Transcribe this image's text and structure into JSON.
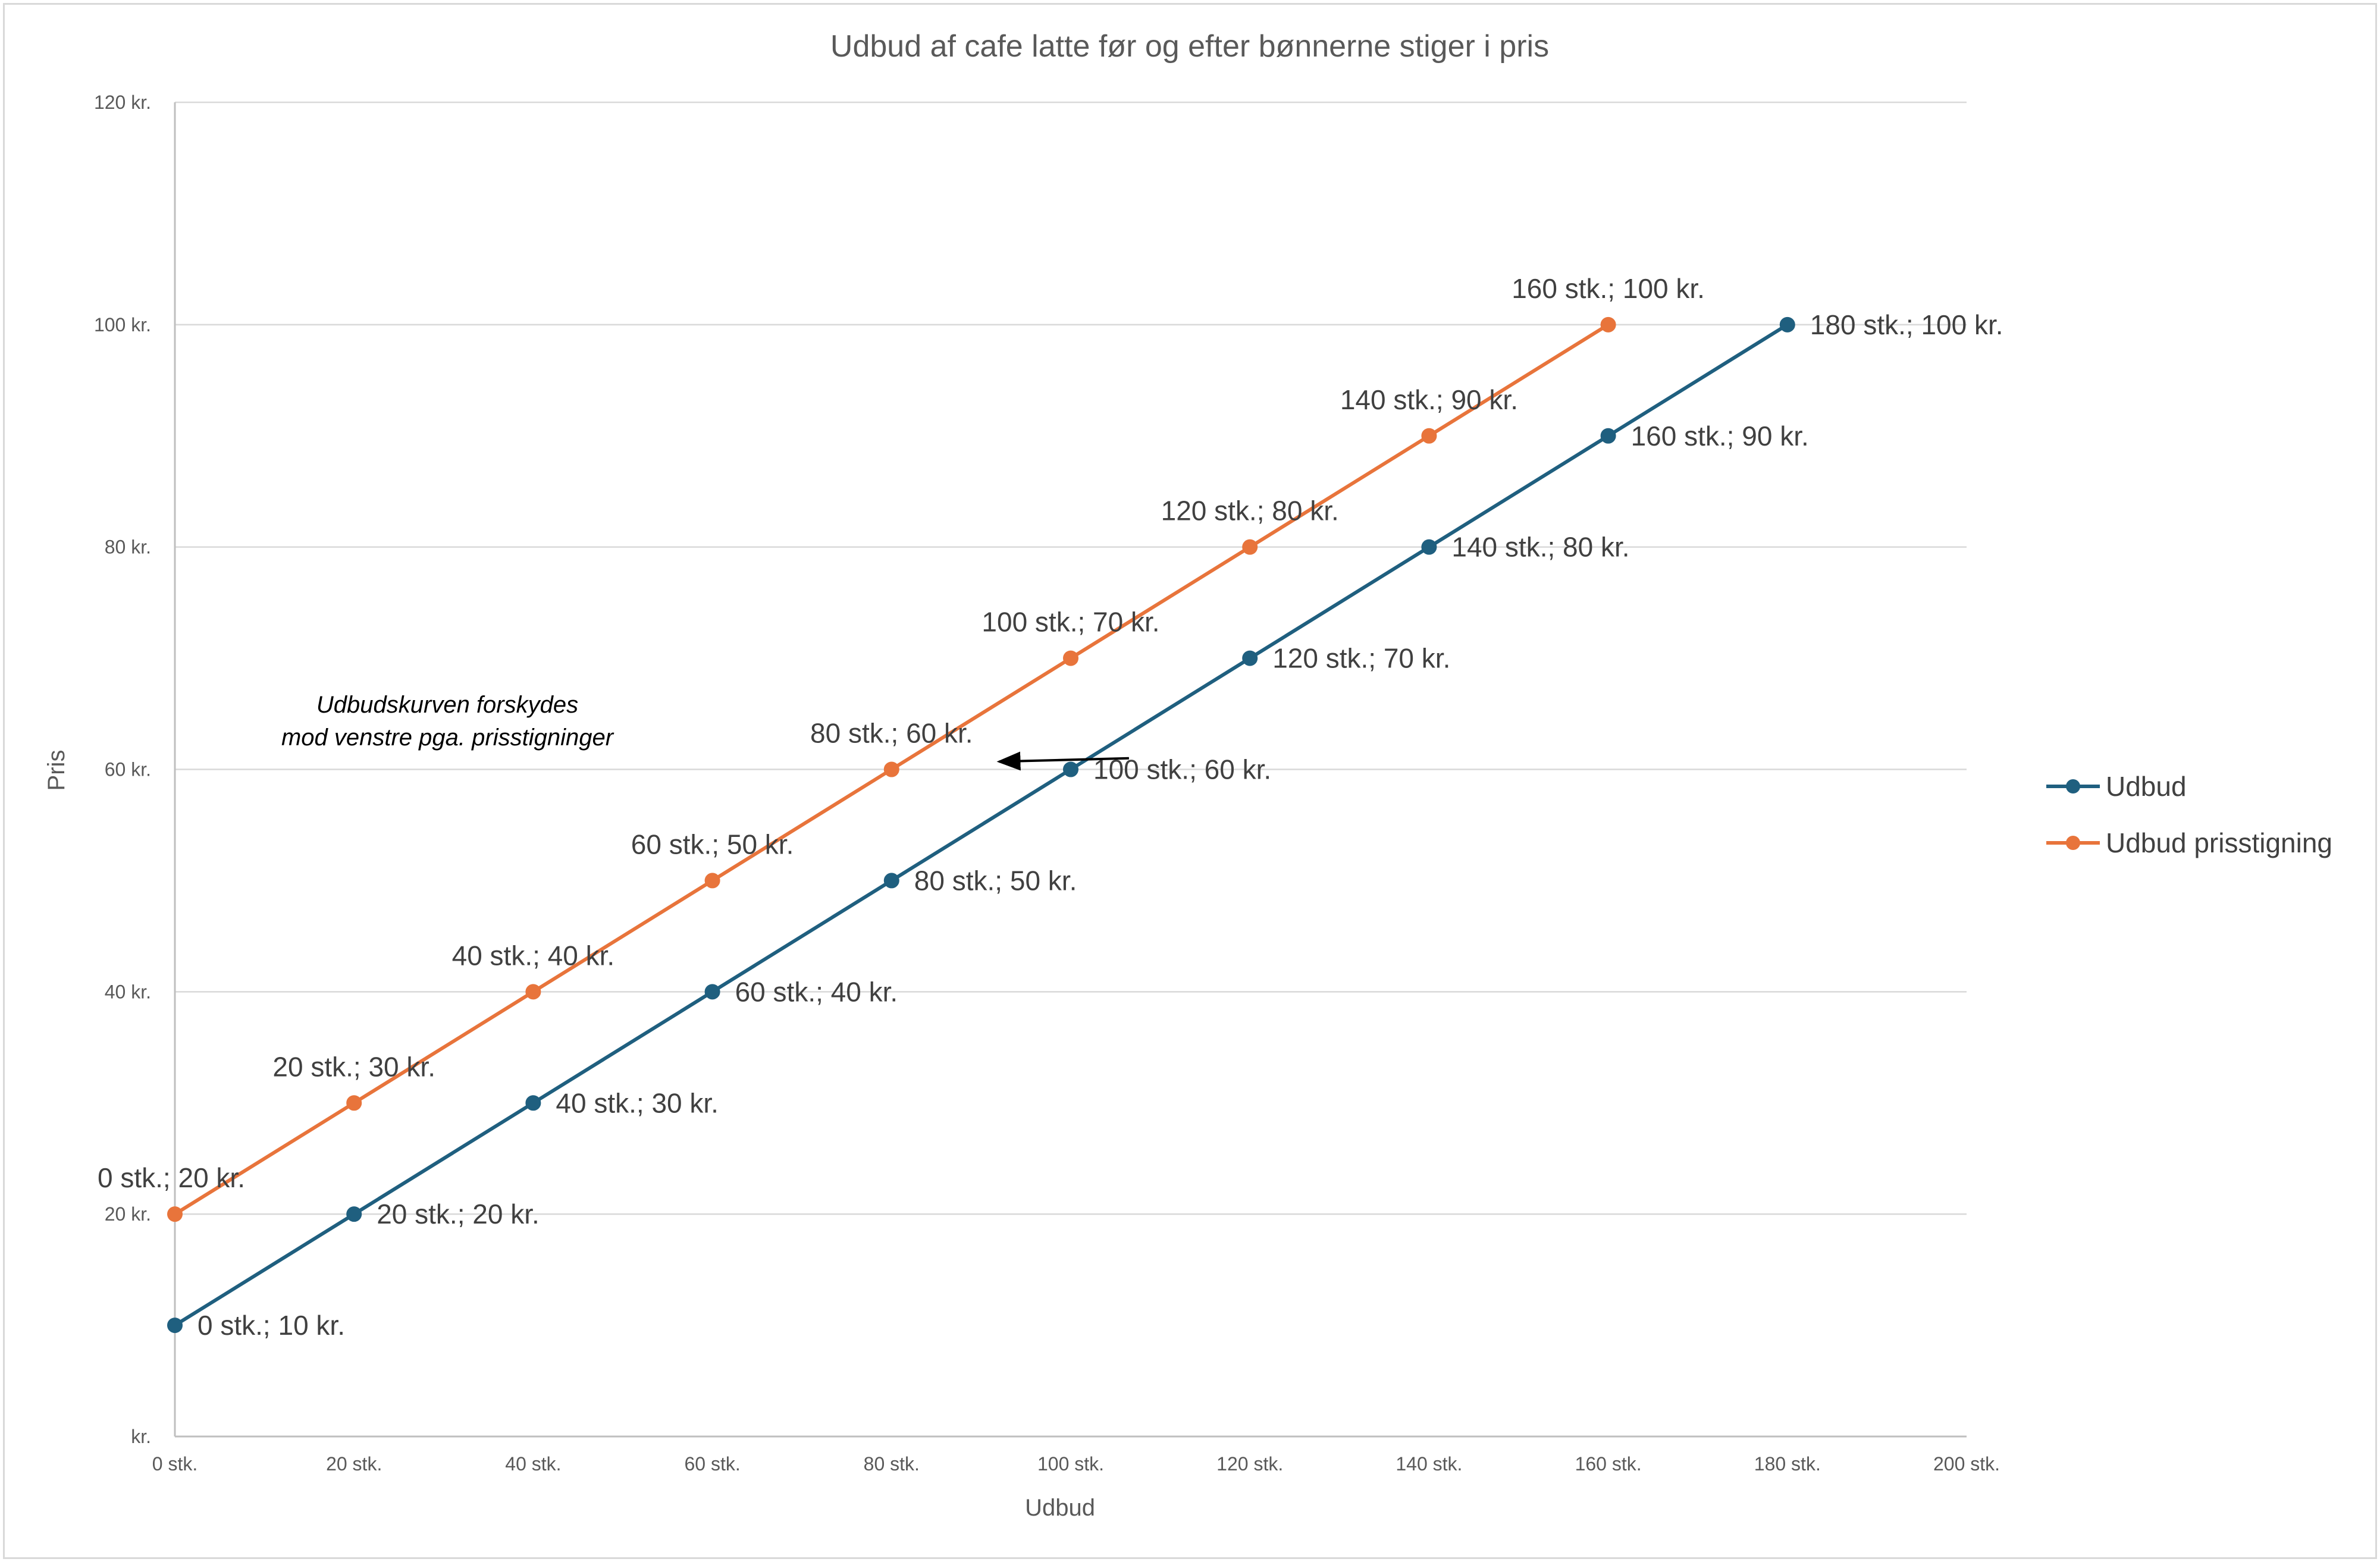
{
  "chart_data": {
    "type": "line",
    "title": "Udbud af cafe latte før og efter bønnerne stiger i pris",
    "xlabel": "Udbud",
    "ylabel": "Pris",
    "xlim": [
      0,
      200
    ],
    "ylim": [
      0,
      120
    ],
    "x_ticks": [
      0,
      20,
      40,
      60,
      80,
      100,
      120,
      140,
      160,
      180,
      200
    ],
    "x_tick_labels": [
      "0 stk.",
      "20 stk.",
      "40 stk.",
      "60 stk.",
      "80 stk.",
      "100 stk.",
      "120 stk.",
      "140 stk.",
      "160 stk.",
      "180 stk.",
      "200 stk."
    ],
    "y_ticks": [
      0,
      20,
      40,
      60,
      80,
      100,
      120
    ],
    "y_tick_labels": [
      "kr.",
      "20 kr.",
      "40 kr.",
      "60 kr.",
      "80 kr.",
      "100 kr.",
      "120 kr."
    ],
    "grid": true,
    "legend_position": "right",
    "series": [
      {
        "name": "Udbud",
        "color": "#1f5f7f",
        "x": [
          0,
          20,
          40,
          60,
          80,
          100,
          120,
          140,
          160,
          180
        ],
        "y": [
          10,
          20,
          30,
          40,
          50,
          60,
          70,
          80,
          90,
          100
        ],
        "labels": [
          "0 stk.; 10 kr.",
          "20 stk.; 20 kr.",
          "40 stk.; 30 kr.",
          "60 stk.; 40 kr.",
          "80 stk.; 50 kr.",
          "100 stk.; 60 kr.",
          "120 stk.; 70 kr.",
          "140 stk.; 80 kr.",
          "160 stk.; 90 kr.",
          "180 stk.; 100 kr."
        ],
        "label_position": "right"
      },
      {
        "name": "Udbud prisstigning",
        "color": "#e8743b",
        "x": [
          0,
          20,
          40,
          60,
          80,
          100,
          120,
          140,
          160
        ],
        "y": [
          20,
          30,
          40,
          50,
          60,
          70,
          80,
          90,
          100
        ],
        "labels": [
          "0 stk.; 20 kr.",
          "20 stk.; 30 kr.",
          "40 stk.; 40 kr.",
          "60 stk.; 50 kr.",
          "80 stk.; 60 kr.",
          "100 stk.; 70 kr.",
          "120 stk.; 80 kr.",
          "140 stk.; 90 kr.",
          "160 stk.; 100 kr."
        ],
        "label_position": "above"
      }
    ],
    "annotations": [
      {
        "text_lines": [
          "Udbudskurven forskydes",
          "mod venstre pga. prisstigninger"
        ],
        "arrow": {
          "from": [
            106.5,
            61
          ],
          "to": [
            92,
            60.7
          ]
        }
      }
    ]
  }
}
